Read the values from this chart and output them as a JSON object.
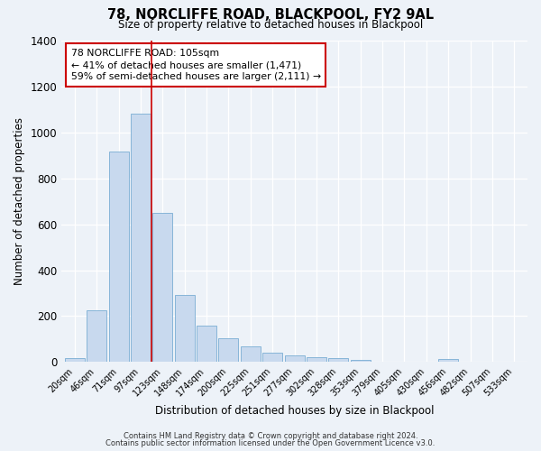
{
  "title": "78, NORCLIFFE ROAD, BLACKPOOL, FY2 9AL",
  "subtitle": "Size of property relative to detached houses in Blackpool",
  "xlabel": "Distribution of detached houses by size in Blackpool",
  "ylabel": "Number of detached properties",
  "bar_labels": [
    "20sqm",
    "46sqm",
    "71sqm",
    "97sqm",
    "123sqm",
    "148sqm",
    "174sqm",
    "200sqm",
    "225sqm",
    "251sqm",
    "277sqm",
    "302sqm",
    "328sqm",
    "353sqm",
    "379sqm",
    "405sqm",
    "430sqm",
    "456sqm",
    "482sqm",
    "507sqm",
    "533sqm"
  ],
  "bar_values": [
    15,
    225,
    915,
    1080,
    650,
    290,
    157,
    105,
    68,
    42,
    27,
    20,
    15,
    8,
    0,
    0,
    0,
    12,
    0,
    0,
    0
  ],
  "bar_color": "#c8d9ee",
  "bar_edge_color": "#7aadd4",
  "vline_x": 3.5,
  "vline_color": "#cc0000",
  "annotation_title": "78 NORCLIFFE ROAD: 105sqm",
  "annotation_line1": "← 41% of detached houses are smaller (1,471)",
  "annotation_line2": "59% of semi-detached houses are larger (2,111) →",
  "annotation_box_color": "#cc0000",
  "ylim": [
    0,
    1400
  ],
  "yticks": [
    0,
    200,
    400,
    600,
    800,
    1000,
    1200,
    1400
  ],
  "footer_line1": "Contains HM Land Registry data © Crown copyright and database right 2024.",
  "footer_line2": "Contains public sector information licensed under the Open Government Licence v3.0.",
  "bg_color": "#edf2f8",
  "plot_bg_color": "#edf2f8"
}
